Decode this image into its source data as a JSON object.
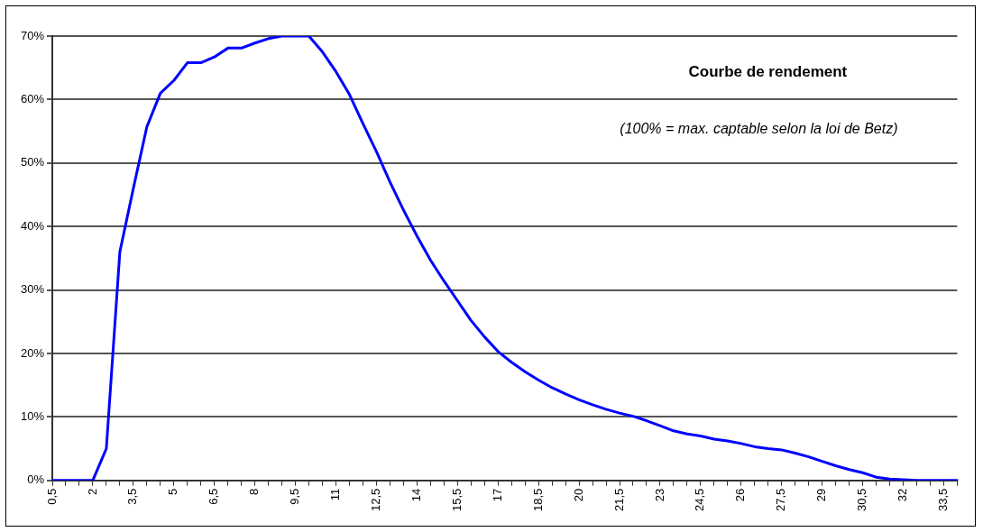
{
  "chart_data": {
    "type": "line",
    "title": "Courbe de rendement",
    "subtitle": "(100% = max. captable selon la loi de Betz)",
    "categories": [
      "0,5",
      null,
      null,
      "2",
      null,
      null,
      "3,5",
      null,
      null,
      "5",
      null,
      null,
      "6,5",
      null,
      null,
      "8",
      null,
      null,
      "9,5",
      null,
      null,
      "11",
      null,
      null,
      "12,5",
      null,
      null,
      "14",
      null,
      null,
      "15,5",
      null,
      null,
      "17",
      null,
      null,
      "18,5",
      null,
      null,
      "20",
      null,
      null,
      "21,5",
      null,
      null,
      "23",
      null,
      null,
      "24,5",
      null,
      null,
      "26",
      null,
      null,
      "27,5",
      null,
      null,
      "29",
      null,
      null,
      "30,5",
      null,
      null,
      "32",
      null,
      null,
      "33,5",
      null
    ],
    "series": [
      {
        "color": "#0000ff",
        "values": [
          0,
          0,
          0,
          0,
          5,
          36,
          46,
          55.7,
          61,
          63,
          65.8,
          65.8,
          66.7,
          68.1,
          68.1,
          68.9,
          69.6,
          70,
          70,
          70,
          67.5,
          64.4,
          60.8,
          56.2,
          51.8,
          47,
          42.6,
          38.5,
          34.7,
          31.4,
          28.3,
          25.2,
          22.6,
          20.3,
          18.6,
          17.1,
          15.8,
          14.6,
          13.6,
          12.7,
          11.9,
          11.2,
          10.6,
          10.1,
          9.4,
          8.6,
          7.8,
          7.3,
          7,
          6.5,
          6.2,
          5.8,
          5.3,
          5,
          4.8,
          4.3,
          3.7,
          3,
          2.3,
          1.7,
          1.2,
          0.5,
          0.2,
          0.1,
          0,
          0,
          0,
          0
        ]
      }
    ],
    "ylim": [
      0,
      70
    ],
    "yticks": [
      {
        "value": 0,
        "label": "0%"
      },
      {
        "value": 10,
        "label": "10%"
      },
      {
        "value": 20,
        "label": "20%"
      },
      {
        "value": 30,
        "label": "30%"
      },
      {
        "value": 40,
        "label": "40%"
      },
      {
        "value": 50,
        "label": "50%"
      },
      {
        "value": 60,
        "label": "60%"
      },
      {
        "value": 70,
        "label": "70%"
      }
    ],
    "grid": "y",
    "legend": false,
    "marker": "none",
    "line_style": "solid"
  }
}
